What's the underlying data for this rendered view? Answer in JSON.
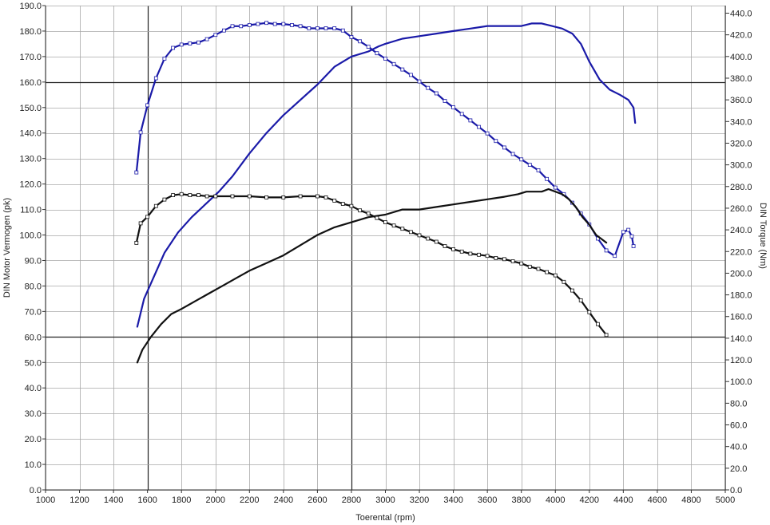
{
  "chart_data": {
    "type": "line",
    "xlabel": "Toerental (rpm)",
    "ylabel": "DIN Motor Vermogen (pk)",
    "y2label": "DIN Torque (Nm)",
    "xlim": [
      1000,
      5000
    ],
    "ylim": [
      0,
      190
    ],
    "y2lim": [
      0,
      447
    ],
    "x_ticks": [
      1000,
      1200,
      1400,
      1600,
      1800,
      2000,
      2200,
      2400,
      2600,
      2800,
      3000,
      3200,
      3400,
      3600,
      3800,
      4000,
      4200,
      4400,
      4600,
      4800,
      5000
    ],
    "y_ticks": [
      0,
      10,
      20,
      30,
      40,
      50,
      60,
      70,
      80,
      90,
      100,
      110,
      120,
      130,
      140,
      150,
      160,
      170,
      180,
      190
    ],
    "y2_ticks": [
      0,
      20,
      40,
      60,
      80,
      100,
      120,
      140,
      160,
      180,
      200,
      220,
      240,
      260,
      280,
      300,
      320,
      340,
      360,
      380,
      400,
      420,
      440
    ],
    "x_tick_labels": [
      "1000",
      "1200",
      "1400",
      "1600",
      "1800",
      "2000",
      "2200",
      "2400",
      "2600",
      "2800",
      "3000",
      "3200",
      "3400",
      "3600",
      "3800",
      "4000",
      "4200",
      "4400",
      "4600",
      "4800",
      "5000"
    ],
    "y_tick_labels": [
      "0.0",
      "10.0",
      "20.0",
      "30.0",
      "40.0",
      "50.0",
      "60.0",
      "70.0",
      "80.0",
      "90.0",
      "100.0",
      "110.0",
      "120.0",
      "130.0",
      "140.0",
      "150.0",
      "160.0",
      "170.0",
      "180.0",
      "190.0"
    ],
    "y2_tick_labels": [
      "0.0",
      "20.0",
      "40.0",
      "60.0",
      "80.0",
      "100.0",
      "120.0",
      "140.0",
      "160.0",
      "180.0",
      "200.0",
      "220.0",
      "240.0",
      "260.0",
      "280.0",
      "300.0",
      "320.0",
      "340.0",
      "360.0",
      "380.0",
      "400.0",
      "420.0",
      "440.0"
    ],
    "grid": true,
    "major_grid_x": [
      1600,
      2800
    ],
    "major_grid_y": [
      60,
      160
    ],
    "series": [
      {
        "axis": "left",
        "color": "#1a1aa8",
        "markers": false,
        "x": [
          1540,
          1580,
          1640,
          1700,
          1780,
          1860,
          1940,
          2020,
          2100,
          2200,
          2300,
          2400,
          2500,
          2600,
          2700,
          2800,
          2900,
          2960,
          3000,
          3100,
          3200,
          3300,
          3400,
          3500,
          3600,
          3700,
          3800,
          3860,
          3920,
          3980,
          4040,
          4100,
          4150,
          4200,
          4260,
          4320,
          4380,
          4430,
          4460,
          4470
        ],
        "y": [
          64,
          75,
          84,
          93,
          101,
          107,
          112,
          117,
          123,
          132,
          140,
          147,
          153,
          159,
          166,
          170,
          172,
          174,
          175,
          177,
          178,
          179,
          180,
          181,
          182,
          182,
          182,
          183,
          183,
          182,
          181,
          179,
          175,
          168,
          161,
          157,
          155,
          153,
          150,
          144
        ]
      },
      {
        "axis": "right",
        "color": "#1a1aa8",
        "markers": true,
        "x": [
          1535,
          1560,
          1600,
          1650,
          1700,
          1750,
          1800,
          1850,
          1900,
          1950,
          2000,
          2050,
          2100,
          2150,
          2200,
          2250,
          2300,
          2350,
          2400,
          2450,
          2500,
          2550,
          2600,
          2650,
          2700,
          2750,
          2800,
          2850,
          2900,
          2950,
          3000,
          3050,
          3100,
          3150,
          3200,
          3250,
          3300,
          3350,
          3400,
          3450,
          3500,
          3550,
          3600,
          3650,
          3700,
          3750,
          3800,
          3850,
          3900,
          3950,
          4000,
          4050,
          4100,
          4150,
          4200,
          4250,
          4300,
          4350,
          4400,
          4430,
          4450,
          4460
        ],
        "y": [
          293,
          330,
          355,
          380,
          398,
          408,
          411,
          412,
          413,
          416,
          420,
          424,
          428,
          428,
          429,
          430,
          431,
          430,
          430,
          429,
          428,
          426,
          426,
          426,
          426,
          424,
          418,
          414,
          409,
          403,
          398,
          393,
          388,
          383,
          377,
          371,
          366,
          359,
          353,
          347,
          341,
          335,
          329,
          322,
          316,
          310,
          305,
          300,
          295,
          287,
          279,
          273,
          265,
          255,
          245,
          232,
          221,
          216,
          238,
          240,
          234,
          225
        ]
      },
      {
        "axis": "left",
        "color": "#111111",
        "markers": false,
        "x": [
          1540,
          1570,
          1620,
          1680,
          1740,
          1800,
          1880,
          1960,
          2040,
          2120,
          2200,
          2300,
          2400,
          2500,
          2600,
          2700,
          2800,
          2900,
          3000,
          3100,
          3200,
          3300,
          3400,
          3500,
          3600,
          3700,
          3780,
          3830,
          3880,
          3920,
          3960,
          4000,
          4040,
          4080,
          4120,
          4160,
          4200,
          4240,
          4280,
          4300
        ],
        "y": [
          50,
          55,
          60,
          65,
          69,
          71,
          74,
          77,
          80,
          83,
          86,
          89,
          92,
          96,
          100,
          103,
          105,
          107,
          108,
          110,
          110,
          111,
          112,
          113,
          114,
          115,
          116,
          117,
          117,
          117,
          118,
          117,
          116,
          114,
          111,
          107,
          104,
          100,
          98,
          97
        ]
      },
      {
        "axis": "right",
        "color": "#111111",
        "markers": true,
        "x": [
          1535,
          1560,
          1600,
          1650,
          1700,
          1750,
          1800,
          1850,
          1900,
          1950,
          2000,
          2100,
          2200,
          2300,
          2400,
          2500,
          2600,
          2650,
          2700,
          2750,
          2800,
          2850,
          2900,
          2950,
          3000,
          3050,
          3100,
          3150,
          3200,
          3250,
          3300,
          3350,
          3400,
          3450,
          3500,
          3550,
          3600,
          3650,
          3700,
          3750,
          3800,
          3850,
          3900,
          3950,
          4000,
          4050,
          4100,
          4150,
          4200,
          4250,
          4300
        ],
        "y": [
          228,
          246,
          252,
          262,
          268,
          272,
          273,
          272,
          272,
          271,
          271,
          271,
          271,
          270,
          270,
          271,
          271,
          270,
          267,
          264,
          262,
          258,
          255,
          251,
          247,
          244,
          241,
          238,
          235,
          232,
          229,
          225,
          222,
          220,
          218,
          217,
          216,
          214,
          213,
          211,
          209,
          206,
          204,
          201,
          198,
          192,
          184,
          175,
          164,
          153,
          143
        ]
      }
    ]
  }
}
